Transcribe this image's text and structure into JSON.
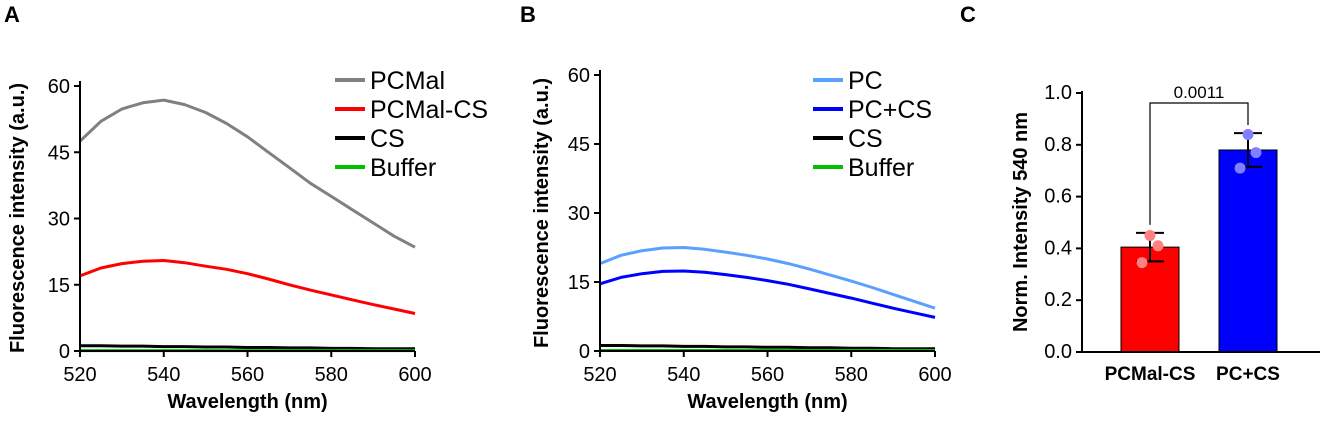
{
  "panels": {
    "A": {
      "label": "A"
    },
    "B": {
      "label": "B"
    },
    "C": {
      "label": "C"
    }
  },
  "colors": {
    "gray": "#808080",
    "red": "#ff0000",
    "black": "#000000",
    "green": "#00c000",
    "lightblue": "#5aa0ff",
    "blue": "#0000ff",
    "bar_red": "#ff0000",
    "bar_blue": "#0000ff",
    "dot_red": "#ff8080",
    "dot_blue": "#8080ff"
  },
  "chart_data": [
    {
      "id": "A",
      "type": "line",
      "xlabel": "Wavelength (nm)",
      "ylabel": "Fluorescence intensity (a.u.)",
      "xlim": [
        520,
        600
      ],
      "ylim": [
        0,
        60
      ],
      "xticks": [
        520,
        540,
        560,
        580,
        600
      ],
      "yticks": [
        0,
        15,
        30,
        45,
        60
      ],
      "legend_position": "top-right",
      "x": [
        520,
        525,
        530,
        535,
        540,
        545,
        550,
        555,
        560,
        565,
        570,
        575,
        580,
        585,
        590,
        595,
        600
      ],
      "series": [
        {
          "name": "PCMal",
          "color": "#808080",
          "values": [
            47.5,
            52,
            54.8,
            56.2,
            56.8,
            55.8,
            54,
            51.5,
            48.5,
            45,
            41.5,
            38,
            35,
            32,
            29,
            26,
            23.5
          ]
        },
        {
          "name": "PCMal-CS",
          "color": "#ff0000",
          "values": [
            17,
            18.8,
            19.8,
            20.3,
            20.5,
            20,
            19.2,
            18.5,
            17.5,
            16.3,
            15,
            13.8,
            12.7,
            11.6,
            10.5,
            9.5,
            8.5
          ]
        },
        {
          "name": "CS",
          "color": "#000000",
          "values": [
            1.2,
            1.2,
            1.1,
            1.1,
            1.0,
            1.0,
            0.9,
            0.9,
            0.8,
            0.8,
            0.7,
            0.7,
            0.6,
            0.6,
            0.5,
            0.5,
            0.5
          ]
        },
        {
          "name": "Buffer",
          "color": "#00c000",
          "values": [
            0.1,
            0.1,
            0.1,
            0.1,
            0.1,
            0.1,
            0.1,
            0.1,
            0.1,
            0.1,
            0.1,
            0.1,
            0.1,
            0.1,
            0.1,
            0.1,
            0.1
          ]
        }
      ]
    },
    {
      "id": "B",
      "type": "line",
      "xlabel": "Wavelength (nm)",
      "ylabel": "Fluorescence intensity (a.u.)",
      "xlim": [
        520,
        600
      ],
      "ylim": [
        0,
        60
      ],
      "xticks": [
        520,
        540,
        560,
        580,
        600
      ],
      "yticks": [
        0,
        15,
        30,
        45,
        60
      ],
      "legend_position": "top-right",
      "x": [
        520,
        525,
        530,
        535,
        540,
        545,
        550,
        555,
        560,
        565,
        570,
        575,
        580,
        585,
        590,
        595,
        600
      ],
      "series": [
        {
          "name": "PC",
          "color": "#5aa0ff",
          "values": [
            19,
            20.8,
            21.8,
            22.4,
            22.5,
            22.1,
            21.5,
            20.8,
            20,
            19,
            17.8,
            16.5,
            15.2,
            13.8,
            12.3,
            10.8,
            9.3
          ]
        },
        {
          "name": "PC+CS",
          "color": "#0000ff",
          "values": [
            14.6,
            16,
            16.8,
            17.3,
            17.4,
            17.1,
            16.6,
            16.0,
            15.3,
            14.5,
            13.5,
            12.5,
            11.5,
            10.4,
            9.3,
            8.3,
            7.3
          ]
        },
        {
          "name": "CS",
          "color": "#000000",
          "values": [
            1.2,
            1.2,
            1.1,
            1.1,
            1.0,
            1.0,
            0.9,
            0.9,
            0.8,
            0.8,
            0.7,
            0.7,
            0.6,
            0.6,
            0.5,
            0.5,
            0.5
          ]
        },
        {
          "name": "Buffer",
          "color": "#00c000",
          "values": [
            0.1,
            0.1,
            0.1,
            0.1,
            0.1,
            0.1,
            0.1,
            0.1,
            0.1,
            0.1,
            0.1,
            0.1,
            0.1,
            0.1,
            0.1,
            0.1,
            0.1
          ]
        }
      ]
    },
    {
      "id": "C",
      "type": "bar",
      "ylabel": "Norm.  Intensity 540 nm",
      "ylim": [
        0,
        1.0
      ],
      "yticks": [
        "0.0",
        "0.2",
        "0.4",
        "0.6",
        "0.8",
        "1.0"
      ],
      "categories": [
        "PCMal-CS",
        "PC+CS"
      ],
      "values": [
        0.405,
        0.78
      ],
      "errors": [
        0.055,
        0.065
      ],
      "points": [
        [
          0.345,
          0.41,
          0.45
        ],
        [
          0.71,
          0.77,
          0.84
        ]
      ],
      "annotation": "0.0011"
    }
  ]
}
